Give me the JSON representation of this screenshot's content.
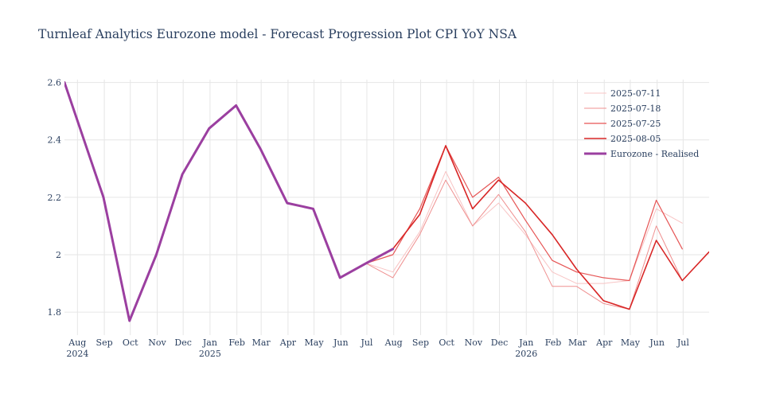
{
  "chart_data": {
    "type": "line",
    "title": "Turnleaf Analytics Eurozone model - Forecast Progression Plot CPI YoY NSA",
    "xlabel": "",
    "ylabel": "",
    "xlim": [
      "2024-07-17",
      "2026-07-31"
    ],
    "ylim": [
      1.72,
      2.61
    ],
    "grid": true,
    "legend_position": "top-right",
    "x_ticks": [
      {
        "date": "2024-08-01",
        "label": "Aug",
        "sub": "2024"
      },
      {
        "date": "2024-09-01",
        "label": "Sep",
        "sub": ""
      },
      {
        "date": "2024-10-01",
        "label": "Oct",
        "sub": ""
      },
      {
        "date": "2024-11-01",
        "label": "Nov",
        "sub": ""
      },
      {
        "date": "2024-12-01",
        "label": "Dec",
        "sub": ""
      },
      {
        "date": "2025-01-01",
        "label": "Jan",
        "sub": "2025"
      },
      {
        "date": "2025-02-01",
        "label": "Feb",
        "sub": ""
      },
      {
        "date": "2025-03-01",
        "label": "Mar",
        "sub": ""
      },
      {
        "date": "2025-04-01",
        "label": "Apr",
        "sub": ""
      },
      {
        "date": "2025-05-01",
        "label": "May",
        "sub": ""
      },
      {
        "date": "2025-06-01",
        "label": "Jun",
        "sub": ""
      },
      {
        "date": "2025-07-01",
        "label": "Jul",
        "sub": ""
      },
      {
        "date": "2025-08-01",
        "label": "Aug",
        "sub": ""
      },
      {
        "date": "2025-09-01",
        "label": "Sep",
        "sub": ""
      },
      {
        "date": "2025-10-01",
        "label": "Oct",
        "sub": ""
      },
      {
        "date": "2025-11-01",
        "label": "Nov",
        "sub": ""
      },
      {
        "date": "2025-12-01",
        "label": "Dec",
        "sub": ""
      },
      {
        "date": "2026-01-01",
        "label": "Jan",
        "sub": "2026"
      },
      {
        "date": "2026-02-01",
        "label": "Feb",
        "sub": ""
      },
      {
        "date": "2026-03-01",
        "label": "Mar",
        "sub": ""
      },
      {
        "date": "2026-04-01",
        "label": "Apr",
        "sub": ""
      },
      {
        "date": "2026-05-01",
        "label": "May",
        "sub": ""
      },
      {
        "date": "2026-06-01",
        "label": "Jun",
        "sub": ""
      },
      {
        "date": "2026-07-01",
        "label": "Jul",
        "sub": ""
      }
    ],
    "y_ticks": [
      1.8,
      2.0,
      2.2,
      2.4,
      2.6
    ],
    "y_tick_labels": [
      "1.8",
      "2",
      "2.2",
      "2.4",
      "2.6"
    ],
    "series": [
      {
        "name": "2025-07-11",
        "color": "#f8c4c4",
        "width": 1,
        "x": [
          "2025-05-31",
          "2025-06-30",
          "2025-07-31",
          "2025-08-31",
          "2025-09-30",
          "2025-10-31",
          "2025-11-30",
          "2025-12-31",
          "2026-01-31",
          "2026-02-28",
          "2026-03-31",
          "2026-04-30",
          "2026-05-31",
          "2026-06-30"
        ],
        "y": [
          1.92,
          1.97,
          1.94,
          2.08,
          2.29,
          2.1,
          2.18,
          2.07,
          1.94,
          1.9,
          1.9,
          1.91,
          2.16,
          2.11
        ]
      },
      {
        "name": "2025-07-18",
        "color": "#ef9090",
        "width": 1,
        "x": [
          "2025-05-31",
          "2025-06-30",
          "2025-07-31",
          "2025-08-31",
          "2025-09-30",
          "2025-10-31",
          "2025-11-30",
          "2025-12-31",
          "2026-01-31",
          "2026-02-28",
          "2026-03-31",
          "2026-04-30",
          "2026-05-31",
          "2026-06-30"
        ],
        "y": [
          1.92,
          1.97,
          1.92,
          2.07,
          2.26,
          2.1,
          2.21,
          2.08,
          1.89,
          1.89,
          1.83,
          1.81,
          2.1,
          1.91
        ]
      },
      {
        "name": "2025-07-25",
        "color": "#e65555",
        "width": 1.2,
        "x": [
          "2025-05-31",
          "2025-06-30",
          "2025-07-31",
          "2025-08-31",
          "2025-09-30",
          "2025-10-31",
          "2025-11-30",
          "2025-12-31",
          "2026-01-31",
          "2026-02-28",
          "2026-03-31",
          "2026-04-30",
          "2026-05-31",
          "2026-06-30"
        ],
        "y": [
          1.92,
          1.97,
          2.0,
          2.16,
          2.38,
          2.2,
          2.27,
          2.12,
          1.98,
          1.94,
          1.92,
          1.91,
          2.19,
          2.02
        ]
      },
      {
        "name": "2025-08-05",
        "color": "#d82626",
        "width": 1.6,
        "x": [
          "2025-07-31",
          "2025-08-31",
          "2025-09-30",
          "2025-10-31",
          "2025-11-30",
          "2025-12-31",
          "2026-01-31",
          "2026-02-28",
          "2026-03-31",
          "2026-04-30",
          "2026-05-31",
          "2026-06-30",
          "2026-07-31"
        ],
        "y": [
          2.02,
          2.14,
          2.38,
          2.16,
          2.26,
          2.18,
          2.07,
          1.95,
          1.84,
          1.81,
          2.05,
          1.91,
          2.01
        ]
      },
      {
        "name": "Eurozone - Realised",
        "color": "#9b3fa0",
        "width": 3,
        "x": [
          "2024-07-17",
          "2024-08-31",
          "2024-09-30",
          "2024-10-31",
          "2024-11-30",
          "2024-12-31",
          "2025-01-31",
          "2025-02-28",
          "2025-03-31",
          "2025-04-30",
          "2025-05-31",
          "2025-06-30",
          "2025-07-31"
        ],
        "y": [
          2.6,
          2.2,
          1.77,
          2.0,
          2.28,
          2.44,
          2.52,
          2.37,
          2.18,
          2.16,
          1.92,
          1.97,
          2.02
        ]
      }
    ]
  }
}
